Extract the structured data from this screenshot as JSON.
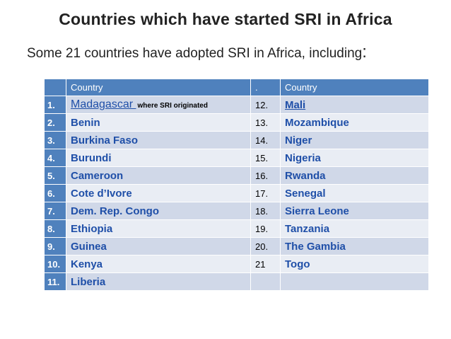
{
  "title": "Countries which have started SRI in Africa",
  "subtitle": "Some 21 countries have adopted SRI in Africa, including",
  "subtitle_colon": ":",
  "table": {
    "headers": [
      "",
      "Country",
      ".",
      "Country"
    ],
    "rows": [
      {
        "n1": "1.",
        "c1": "Madagascar ",
        "note": "where SRI originated",
        "n2": "12.",
        "c2": "Mali"
      },
      {
        "n1": "2.",
        "c1": "Benin",
        "n2": "13.",
        "c2": "Mozambique"
      },
      {
        "n1": "3.",
        "c1": "Burkina Faso",
        "n2": "14.",
        "c2": "Niger"
      },
      {
        "n1": "4.",
        "c1": "Burundi",
        "n2": "15.",
        "c2": "Nigeria"
      },
      {
        "n1": "5.",
        "c1": "Cameroon",
        "n2": "16.",
        "c2": "Rwanda"
      },
      {
        "n1": "6.",
        "c1": "Cote d’Ivore",
        "n2": "17.",
        "c2": "Senegal"
      },
      {
        "n1": "7.",
        "c1": "Dem. Rep. Congo",
        "n2": "18.",
        "c2": "Sierra Leone"
      },
      {
        "n1": "8.",
        "c1": "Ethiopia",
        "n2": "19.",
        "c2": "Tanzania"
      },
      {
        "n1": "9.",
        "c1": "Guinea",
        "n2": "20.",
        "c2": "The Gambia"
      },
      {
        "n1": "10.",
        "c1": "Kenya",
        "n2": "21",
        "c2": "Togo"
      },
      {
        "n1": "11.",
        "c1": "Liberia",
        "n2": "",
        "c2": ""
      }
    ]
  },
  "colors": {
    "header_blue": "#4f81bd",
    "row_odd": "#d0d8e8",
    "row_even": "#e9edf4",
    "link": "#1f4fa8"
  }
}
